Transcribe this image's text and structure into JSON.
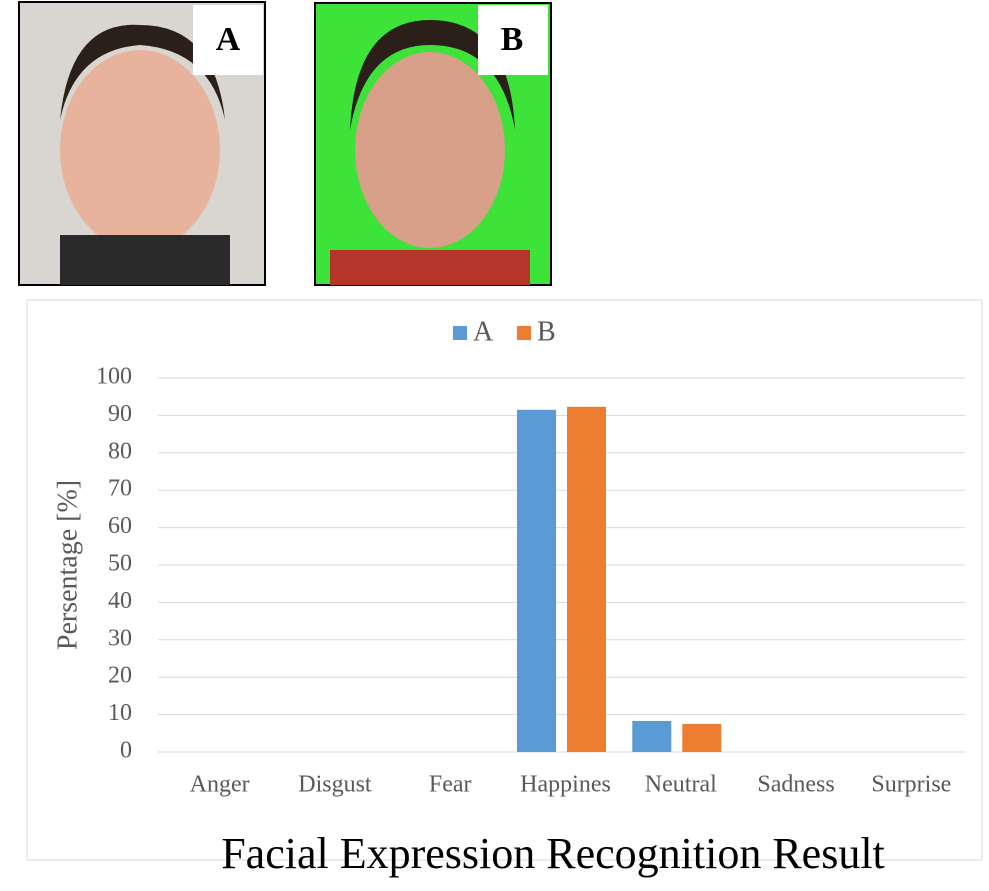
{
  "photo_labels": [
    "A",
    "B"
  ],
  "chart_data": {
    "type": "bar",
    "title": "Facial Expression Recognition Result",
    "y_label": "Persentage [%]",
    "categories": [
      "Anger",
      "Disgust",
      "Fear",
      "Happines",
      "Neutral",
      "Sadness",
      "Surprise"
    ],
    "series": [
      {
        "name": "A",
        "color": "#5b9bd5",
        "values": [
          0,
          0,
          0,
          91.5,
          8.3,
          0,
          0
        ]
      },
      {
        "name": "B",
        "color": "#ed7d31",
        "values": [
          0,
          0,
          0,
          92.3,
          7.5,
          0,
          0
        ]
      }
    ],
    "ylim": [
      0,
      100
    ],
    "yticks": [
      0,
      10,
      20,
      30,
      40,
      50,
      60,
      70,
      80,
      90,
      100
    ],
    "grid": true
  }
}
